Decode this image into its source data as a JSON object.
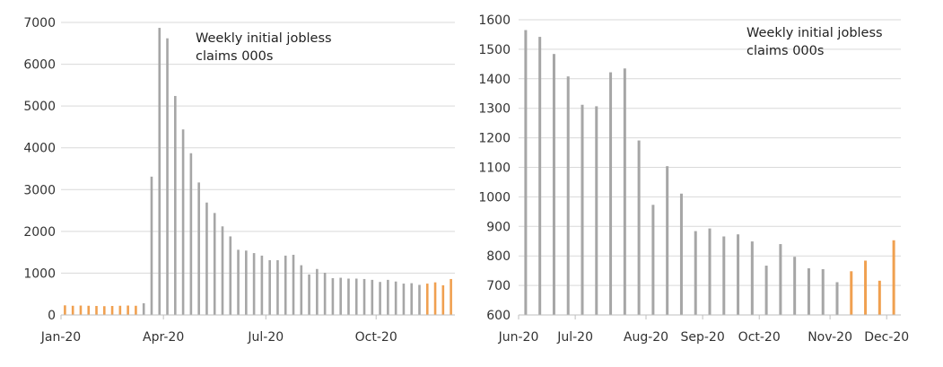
{
  "chart_data": [
    {
      "type": "bar",
      "title": "",
      "annotation": [
        "Weekly initial jobless",
        "claims 000s"
      ],
      "xlabel": "",
      "ylabel": "",
      "ylim": [
        0,
        7000
      ],
      "yticks": [
        "0",
        "1000",
        "2000",
        "3000",
        "4000",
        "5000",
        "6000",
        "7000"
      ],
      "xtick_labels": [
        "Jan-20",
        "Apr-20",
        "Jul-20",
        "Oct-20"
      ],
      "xtick_weeks": [
        0,
        13,
        26,
        40
      ],
      "grid": "horizontal",
      "legend": "none",
      "colors": {
        "highlight": "#f0a050",
        "normal": "#a6a6a6",
        "grid": "#d9d9d9",
        "axis": "#bfbfbf"
      },
      "x_start": "2020-01-04",
      "x_step": "weekly",
      "values": [
        230,
        220,
        225,
        220,
        215,
        210,
        215,
        220,
        225,
        220,
        280,
        3310,
        6870,
        6620,
        5240,
        4440,
        3870,
        3170,
        2690,
        2440,
        2120,
        1880,
        1560,
        1540,
        1480,
        1420,
        1310,
        1310,
        1420,
        1440,
        1190,
        970,
        1100,
        1010,
        880,
        890,
        870,
        870,
        860,
        840,
        790,
        840,
        800,
        750,
        760,
        720,
        750,
        780,
        710,
        860
      ],
      "highlight_color": "#f0a050",
      "normal_color": "#a6a6a6",
      "highlight_indices": [
        0,
        1,
        2,
        3,
        4,
        5,
        6,
        7,
        8,
        9,
        46,
        47,
        48,
        49
      ]
    },
    {
      "type": "bar",
      "title": "",
      "annotation": [
        "Weekly initial jobless",
        "claims 000s"
      ],
      "xlabel": "",
      "ylabel": "",
      "ylim": [
        600,
        1600
      ],
      "yticks": [
        "600",
        "700",
        "800",
        "900",
        "1000",
        "1100",
        "1200",
        "1300",
        "1400",
        "1500",
        "1600"
      ],
      "xtick_labels": [
        "Jun-20",
        "Jul-20",
        "Aug-20",
        "Sep-20",
        "Oct-20",
        "Nov-20",
        "Dec-20"
      ],
      "xtick_weeks": [
        0,
        4,
        9,
        13,
        17,
        22,
        26
      ],
      "grid": "horizontal",
      "legend": "none",
      "colors": {
        "highlight": "#f0a050",
        "normal": "#a6a6a6",
        "grid": "#d9d9d9",
        "axis": "#bfbfbf"
      },
      "x_start": "2020-06-06",
      "x_step": "weekly",
      "values": [
        1565,
        1542,
        1484,
        1408,
        1312,
        1307,
        1422,
        1435,
        1191,
        973,
        1104,
        1011,
        884,
        893,
        866,
        873,
        849,
        767,
        840,
        797,
        758,
        755,
        711,
        748,
        784,
        716,
        853
      ],
      "highlight_color": "#f0a050",
      "normal_color": "#a6a6a6",
      "highlight_indices": [
        23,
        24,
        25,
        26
      ]
    }
  ]
}
